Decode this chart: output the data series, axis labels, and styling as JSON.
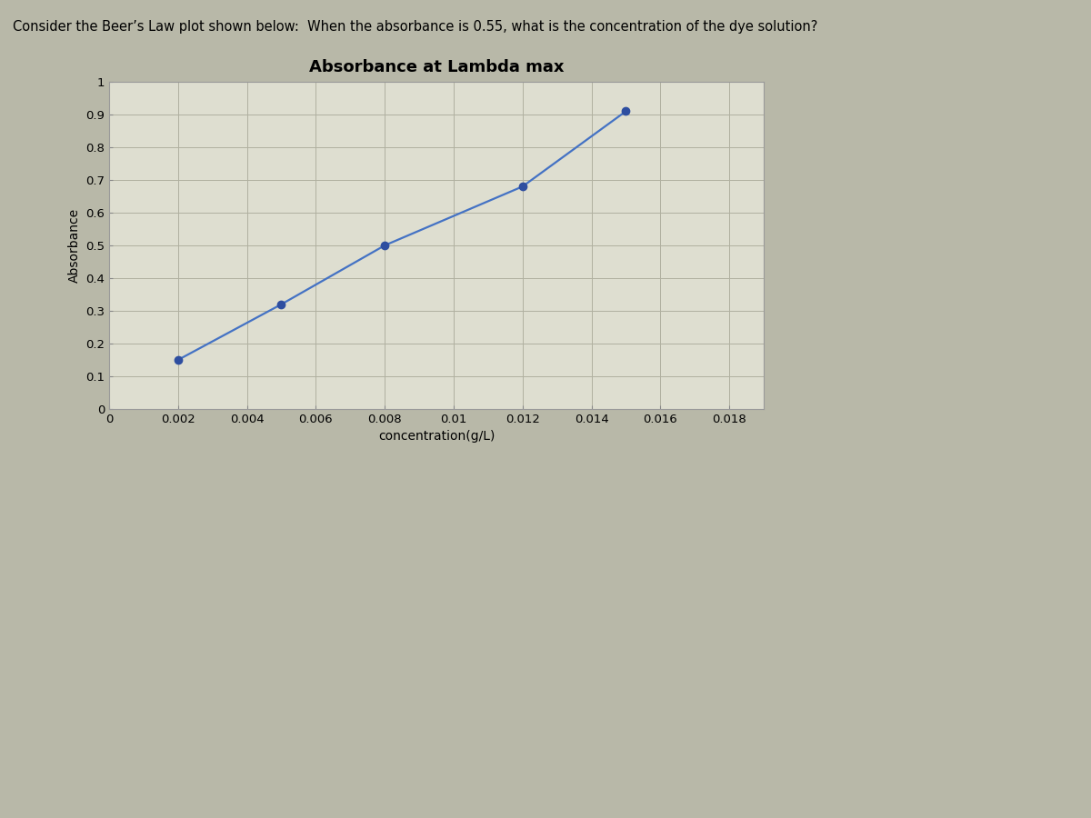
{
  "title": "Absorbance at Lambda max",
  "xlabel": "concentration(g/L)",
  "ylabel": "Absorbance",
  "x_data": [
    0.002,
    0.005,
    0.008,
    0.012,
    0.015
  ],
  "y_data": [
    0.15,
    0.32,
    0.5,
    0.68,
    0.91
  ],
  "xlim": [
    0,
    0.019
  ],
  "ylim": [
    0,
    1.0
  ],
  "xticks": [
    0,
    0.002,
    0.004,
    0.006,
    0.008,
    0.01,
    0.012,
    0.014,
    0.016,
    0.018
  ],
  "yticks": [
    0,
    0.1,
    0.2,
    0.3,
    0.4,
    0.5,
    0.6,
    0.7,
    0.8,
    0.9,
    1.0
  ],
  "ytick_labels": [
    "0",
    "0.1",
    "0.2",
    "0.3",
    "0.4",
    "0.5",
    "0.6",
    "0.7",
    "0.8",
    "0.9",
    "1"
  ],
  "xtick_labels": [
    "0",
    "0.002",
    "0.004",
    "0.006",
    "0.008",
    "0.01",
    "0.012",
    "0.014",
    "0.016",
    "0.018"
  ],
  "line_color": "#4472C4",
  "marker_color": "#2E4EA0",
  "marker_size": 6,
  "line_width": 1.6,
  "plot_bg_color": "#DEDED0",
  "chart_panel_color": "#E8E8DA",
  "outer_bg_color": "#B8B8A8",
  "header_bg_color": "#6A6A78",
  "header_text": "Consider the Beer’s Law plot shown below:  When the absorbance is 0.55, what is the concentration of the dye solution?",
  "header_text_color": "#000000",
  "title_fontsize": 13,
  "axis_label_fontsize": 10,
  "tick_fontsize": 9.5,
  "header_fontsize": 10.5,
  "grid_color": "#B0B0A0",
  "grid_linewidth": 0.7
}
